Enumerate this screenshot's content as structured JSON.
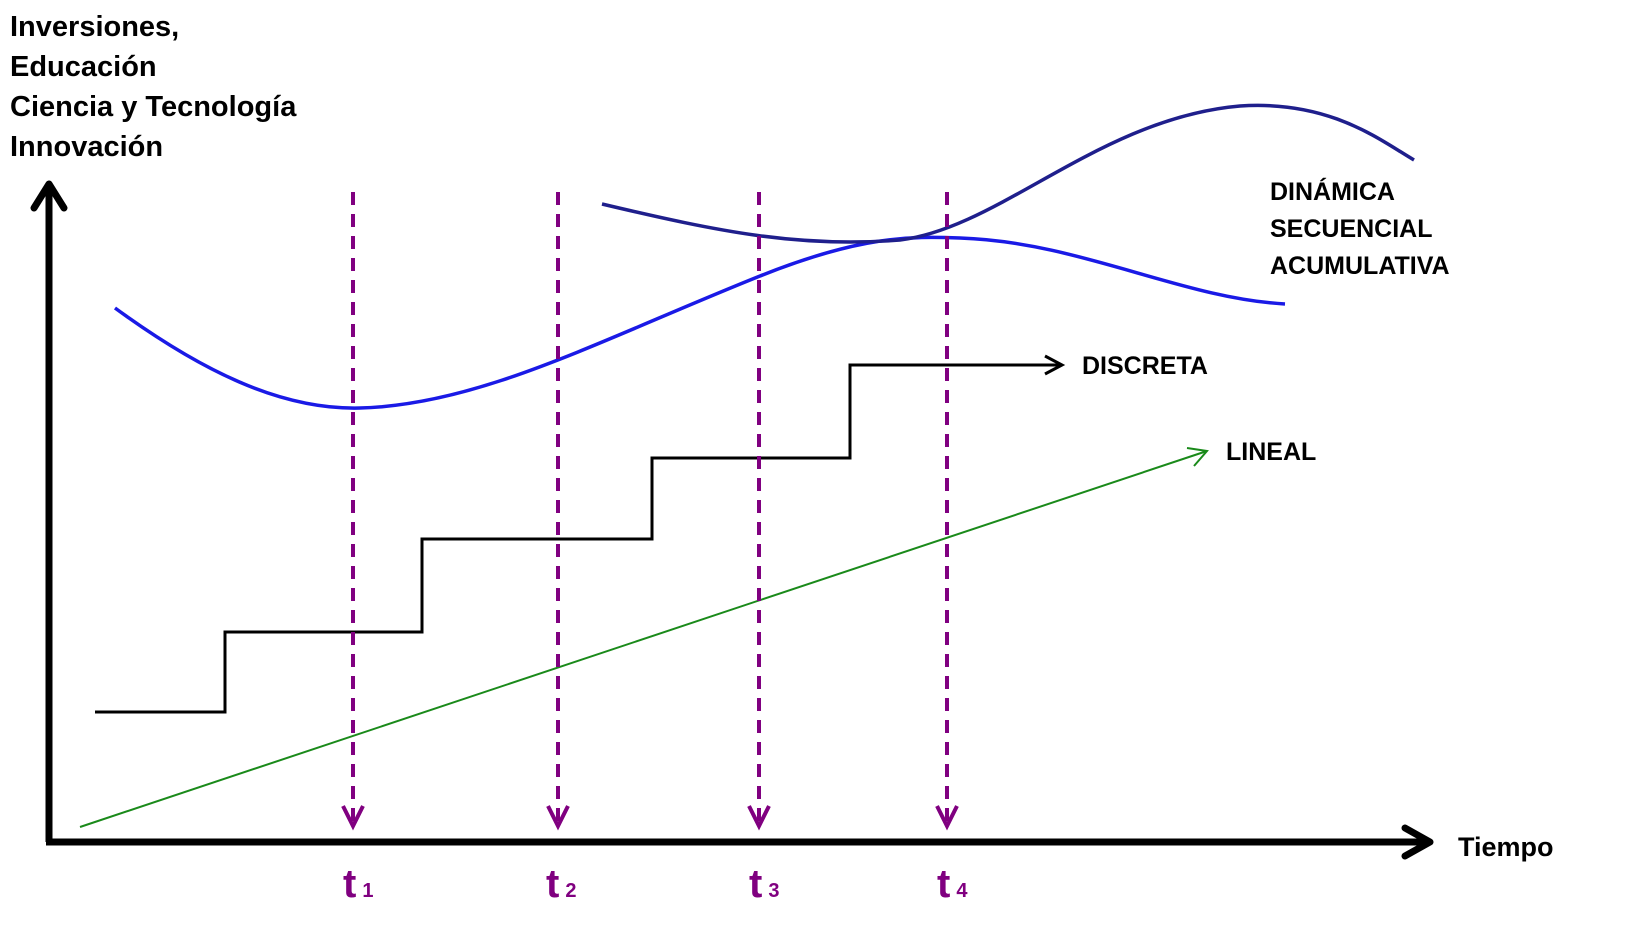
{
  "y_axis_label_lines": [
    "Inversiones,",
    "Educación",
    "Ciencia y Tecnología",
    "Innovación"
  ],
  "x_axis_label": "Tiempo",
  "curve_labels": {
    "dinamica": [
      "DINÁMICA",
      "SECUENCIAL",
      "ACUMULATIVA"
    ],
    "discreta": "DISCRETA",
    "lineal": "LINEAL"
  },
  "time_markers": [
    {
      "letter": "t",
      "sub": "1"
    },
    {
      "letter": "t",
      "sub": "2"
    },
    {
      "letter": "t",
      "sub": "3"
    },
    {
      "letter": "t",
      "sub": "4"
    }
  ],
  "colors": {
    "axes": "#000000",
    "dinamica_curve_1": "#1a1ae6",
    "dinamica_curve_2": "#1f1f8c",
    "discreta": "#000000",
    "lineal": "#1a8a1a",
    "markers": "#800080"
  }
}
